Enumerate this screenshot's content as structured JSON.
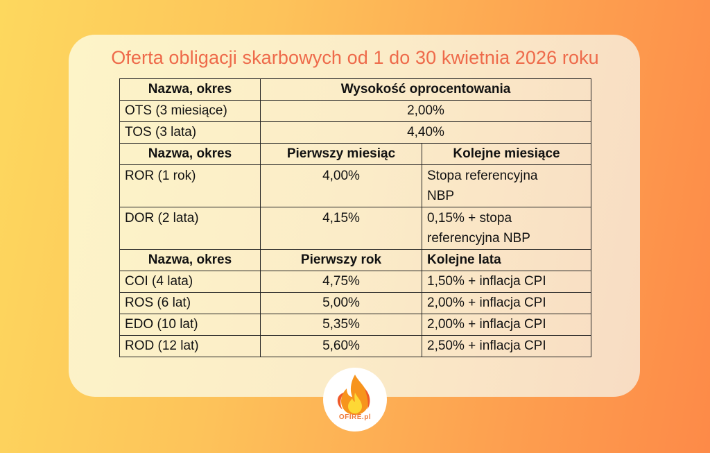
{
  "title": "Oferta obligacji skarbowych od 1 do 30 kwietnia 2026 roku",
  "section1": {
    "header": [
      "Nazwa, okres",
      "Wysokość oprocentowania"
    ],
    "rows": [
      {
        "name": "OTS (3 miesiące)",
        "rate": "2,00%"
      },
      {
        "name": "TOS (3 lata)",
        "rate": "4,40%"
      }
    ]
  },
  "section2": {
    "header": [
      "Nazwa, okres",
      "Pierwszy miesiąc",
      "Kolejne miesiące"
    ],
    "rows": [
      {
        "name": "ROR (1 rok)",
        "first": "4,00%",
        "next_line1": "Stopa referencyjna",
        "next_line2": "NBP"
      },
      {
        "name": "DOR (2 lata)",
        "first": "4,15%",
        "next_line1": "0,15% + stopa",
        "next_line2": "referencyjna NBP"
      }
    ]
  },
  "section3": {
    "header": [
      "Nazwa, okres",
      "Pierwszy rok",
      "Kolejne lata"
    ],
    "rows": [
      {
        "name": "COI (4 lata)",
        "first": "4,75%",
        "next": "1,50% + inflacja CPI"
      },
      {
        "name": "ROS (6 lat)",
        "first": "5,00%",
        "next": "2,00% + inflacja CPI"
      },
      {
        "name": "EDO (10 lat)",
        "first": "5,35%",
        "next": "2,00% + inflacja CPI"
      },
      {
        "name": "ROD (12 lat)",
        "first": "5,60%",
        "next": "2,50% + inflacja CPI"
      }
    ]
  },
  "logo": {
    "text": "OFIRE.pl",
    "icon": "flame-icon"
  },
  "colors": {
    "title": "#ee6a4a",
    "flame_outer": "#f7941d",
    "flame_inner": "#fdd835",
    "flame_accent": "#ef5b2a"
  }
}
